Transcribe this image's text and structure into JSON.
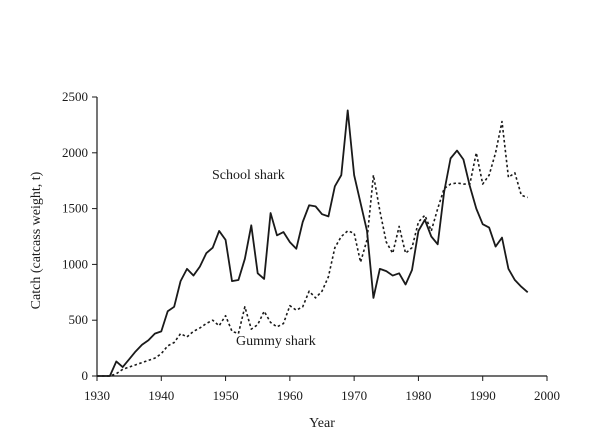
{
  "chart_data": {
    "type": "line",
    "title": "",
    "xlabel": "Year",
    "ylabel": "Catch (catcass weight, t)",
    "xlim": [
      1930,
      2000
    ],
    "ylim": [
      0,
      2500
    ],
    "xticks": [
      1930,
      1940,
      1950,
      1960,
      1970,
      1980,
      1990,
      2000
    ],
    "yticks": [
      0,
      500,
      1000,
      1500,
      2000,
      2500
    ],
    "grid": false,
    "legend": "inline labels",
    "series": [
      {
        "name": "School shark",
        "style": "solid",
        "color": "#1a1a1a",
        "x": [
          1930,
          1931,
          1932,
          1933,
          1934,
          1935,
          1936,
          1937,
          1938,
          1939,
          1940,
          1941,
          1942,
          1943,
          1944,
          1945,
          1946,
          1947,
          1948,
          1949,
          1950,
          1951,
          1952,
          1953,
          1954,
          1955,
          1956,
          1957,
          1958,
          1959,
          1960,
          1961,
          1962,
          1963,
          1964,
          1965,
          1966,
          1967,
          1968,
          1969,
          1970,
          1971,
          1972,
          1973,
          1974,
          1975,
          1976,
          1977,
          1978,
          1979,
          1980,
          1981,
          1982,
          1983,
          1984,
          1985,
          1986,
          1987,
          1988,
          1989,
          1990,
          1991,
          1992,
          1993,
          1994,
          1995,
          1996,
          1997
        ],
        "y": [
          0,
          0,
          0,
          130,
          80,
          150,
          220,
          280,
          320,
          380,
          400,
          580,
          620,
          850,
          960,
          900,
          980,
          1100,
          1150,
          1300,
          1220,
          850,
          860,
          1050,
          1350,
          920,
          870,
          1460,
          1260,
          1290,
          1200,
          1140,
          1380,
          1530,
          1520,
          1450,
          1430,
          1700,
          1800,
          2380,
          1800,
          1550,
          1300,
          700,
          960,
          940,
          900,
          920,
          820,
          950,
          1300,
          1400,
          1250,
          1180,
          1650,
          1950,
          2020,
          1940,
          1700,
          1500,
          1360,
          1330,
          1160,
          1240,
          960,
          860,
          800,
          750
        ]
      },
      {
        "name": "Gummy shark",
        "style": "dotted",
        "color": "#1a1a1a",
        "x": [
          1930,
          1931,
          1932,
          1933,
          1934,
          1935,
          1936,
          1937,
          1938,
          1939,
          1940,
          1941,
          1942,
          1943,
          1944,
          1945,
          1946,
          1947,
          1948,
          1949,
          1950,
          1951,
          1952,
          1953,
          1954,
          1955,
          1956,
          1957,
          1958,
          1959,
          1960,
          1961,
          1962,
          1963,
          1964,
          1965,
          1966,
          1967,
          1968,
          1969,
          1970,
          1971,
          1972,
          1973,
          1974,
          1975,
          1976,
          1977,
          1978,
          1979,
          1980,
          1981,
          1982,
          1983,
          1984,
          1985,
          1986,
          1987,
          1988,
          1989,
          1990,
          1991,
          1992,
          1993,
          1994,
          1995,
          1996,
          1997
        ],
        "y": [
          0,
          0,
          0,
          20,
          60,
          80,
          100,
          120,
          140,
          160,
          200,
          270,
          300,
          380,
          350,
          400,
          430,
          470,
          500,
          450,
          540,
          400,
          380,
          620,
          420,
          460,
          580,
          480,
          440,
          470,
          630,
          590,
          620,
          760,
          700,
          760,
          890,
          1150,
          1250,
          1300,
          1280,
          1020,
          1220,
          1800,
          1480,
          1200,
          1100,
          1340,
          1100,
          1150,
          1380,
          1440,
          1300,
          1500,
          1680,
          1720,
          1730,
          1720,
          1720,
          2000,
          1720,
          1800,
          2000,
          2280,
          1780,
          1820,
          1620,
          1600
        ]
      }
    ]
  }
}
